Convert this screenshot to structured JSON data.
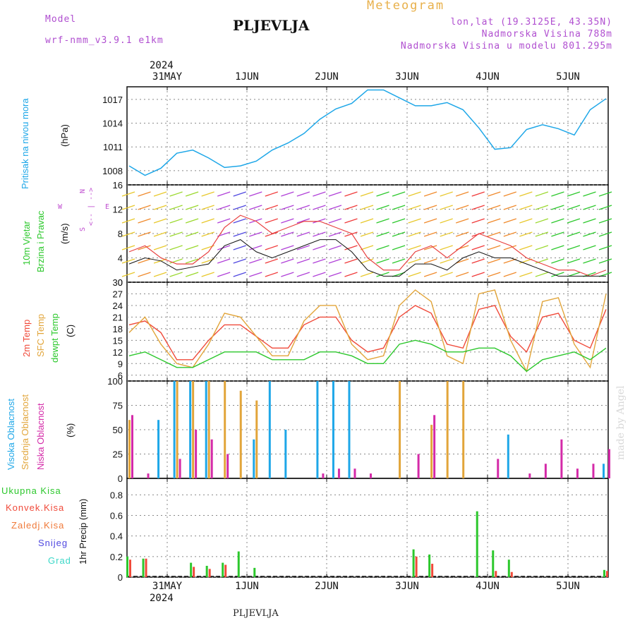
{
  "header": {
    "model_label": "Model",
    "model_value": "wrf-nmm_v3.9.1 e1km",
    "station": "PLJEVLJA",
    "title": "Meteogram",
    "coords": "lon,lat (19.3125E, 43.35N)",
    "altitude": "Nadmorska Visina 788m",
    "model_altitude": "Nadmorska Visina u modelu 801.295m"
  },
  "footer": {
    "station": "PLJEVLJA",
    "credit": "made by Angel"
  },
  "days": [
    "31MAY",
    "1JUN",
    "2JUN",
    "3JUN",
    "4JUN",
    "5JUN"
  ],
  "year": "2024",
  "wind_legend": {
    "north": "N",
    "south": "S",
    "west": "W",
    "east": "E"
  },
  "colors": {
    "pressure": "#1ea7e8",
    "t2m": "#f04a3a",
    "sfc": "#e2a53a",
    "dew": "#2cc82c",
    "high": "#1ea7e8",
    "mid": "#e2a53a",
    "low": "#d42aa8",
    "total": "#2cc82c",
    "conv": "#f04a3a",
    "snow": "#5048e0",
    "grad": "#3cd8c8"
  },
  "panels": {
    "pressure": {
      "label1": "Pritisak na nivou mora",
      "unit": "(hPa)"
    },
    "wind": {
      "label1": "10m Vjetar",
      "label2": "Brzina i Pravac",
      "unit": "(m/s)"
    },
    "temp": {
      "label1": "2m Temp",
      "label2": "SFC Temp",
      "label3": "dewpt Temp",
      "unit": "(C)"
    },
    "cloud": {
      "label1": "Visoka Oblacnost",
      "label2": "Srednja Oblacnost",
      "label3": "Niska Oblacnost",
      "unit": "(%)"
    },
    "precip": {
      "labels": [
        "Ukupna Kisa",
        "Konvek.Kisa",
        "Zaledj.Kisa",
        "Snijeg",
        "Grad"
      ],
      "unit": "1hr Precip (mm)"
    }
  },
  "chart_data": [
    {
      "type": "line",
      "title": "Pritisak na nivou mora",
      "ylabel": "(hPa)",
      "ylim": [
        1006.2,
        1018.6
      ],
      "yticks": [
        1008,
        1011,
        1014,
        1017
      ],
      "x": [
        0,
        1,
        2,
        3,
        4,
        5,
        6,
        7,
        8,
        9,
        10,
        11,
        12,
        13,
        14,
        15,
        16,
        17,
        18,
        19,
        20,
        21,
        22,
        23,
        24,
        25,
        26,
        27,
        28,
        29,
        30
      ],
      "series": [
        {
          "values": [
            1008.6,
            1007.4,
            1008.3,
            1010.2,
            1010.6,
            1009.6,
            1008.4,
            1008.6,
            1009.2,
            1010.6,
            1011.5,
            1012.7,
            1014.5,
            1015.8,
            1016.5,
            1018.2,
            1018.2,
            1017.2,
            1016.2,
            1016.2,
            1016.6,
            1015.7,
            1013.4,
            1010.7,
            1010.9,
            1013.2,
            1013.8,
            1013.3,
            1012.5,
            1015.7,
            1017.1
          ]
        }
      ]
    },
    {
      "type": "line",
      "title": "10m Vjetar Brzina i Pravac",
      "ylabel": "(m/s)",
      "ylim": [
        0,
        16
      ],
      "yticks": [
        0,
        4,
        8,
        12,
        16
      ],
      "x": [
        0,
        1,
        2,
        3,
        4,
        5,
        6,
        7,
        8,
        9,
        10,
        11,
        12,
        13,
        14,
        15,
        16,
        17,
        18,
        19,
        20,
        21,
        22,
        23,
        24,
        25,
        26,
        27,
        28,
        29,
        30
      ],
      "series": [
        {
          "values": [
            3,
            4,
            3.5,
            2,
            2.5,
            3,
            6,
            7,
            5,
            4,
            5,
            6,
            7,
            7,
            5,
            2,
            1,
            1,
            3,
            3,
            2,
            4,
            5,
            4,
            4,
            3,
            2,
            1,
            1,
            1,
            1
          ]
        },
        {
          "values": [
            5,
            6,
            4,
            3,
            3,
            5,
            9,
            11,
            10,
            8,
            9,
            10,
            10,
            9,
            8,
            4,
            2,
            2,
            5,
            6,
            4,
            6,
            8,
            7,
            6,
            4,
            3,
            2,
            2,
            1,
            2
          ]
        }
      ]
    },
    {
      "type": "line",
      "title": "2m Temp / SFC Temp / dewpt Temp",
      "ylabel": "(C)",
      "ylim": [
        4.5,
        30
      ],
      "yticks": [
        6,
        9,
        12,
        15,
        18,
        21,
        24,
        27,
        30
      ],
      "x": [
        0,
        1,
        2,
        3,
        4,
        5,
        6,
        7,
        8,
        9,
        10,
        11,
        12,
        13,
        14,
        15,
        16,
        17,
        18,
        19,
        20,
        21,
        22,
        23,
        24,
        25,
        26,
        27,
        28,
        29,
        30
      ],
      "series": [
        {
          "name": "2m Temp",
          "values": [
            19,
            20,
            17,
            10,
            10,
            15,
            19,
            19,
            16,
            13,
            13,
            19,
            21,
            21,
            15,
            12,
            13,
            21,
            24,
            22,
            14,
            13,
            23,
            24,
            16,
            12,
            21,
            22,
            15,
            13,
            23
          ]
        },
        {
          "name": "SFC Temp",
          "values": [
            17,
            21,
            14,
            9,
            8,
            14,
            22,
            21,
            16,
            11,
            11,
            20,
            24,
            24,
            14,
            10,
            11,
            24,
            28,
            25,
            11,
            9,
            27,
            28,
            15,
            7,
            25,
            26,
            14,
            8,
            27
          ]
        },
        {
          "name": "dewpt Temp",
          "values": [
            11,
            12,
            10,
            8,
            8,
            10,
            12,
            12,
            12,
            10,
            10,
            10,
            12,
            12,
            11,
            9,
            9,
            14,
            15,
            14,
            12,
            12,
            13,
            13,
            11,
            7,
            10,
            11,
            12,
            10,
            13
          ]
        }
      ]
    },
    {
      "type": "bar",
      "title": "Visoka / Srednja / Niska Oblacnost",
      "ylabel": "(%)",
      "ylim": [
        0,
        100
      ],
      "yticks": [
        0,
        25,
        50,
        75,
        100
      ],
      "x": [
        0,
        1,
        2,
        3,
        4,
        5,
        6,
        7,
        8,
        9,
        10,
        11,
        12,
        13,
        14,
        15,
        16,
        17,
        18,
        19,
        20,
        21,
        22,
        23,
        24,
        25,
        26,
        27,
        28,
        29,
        30
      ],
      "series": [
        {
          "name": "Visoka Oblacnost",
          "values": [
            0,
            0,
            60,
            100,
            100,
            100,
            0,
            0,
            40,
            100,
            50,
            0,
            100,
            100,
            100,
            0,
            0,
            0,
            0,
            0,
            0,
            0,
            0,
            0,
            45,
            0,
            0,
            0,
            0,
            0,
            15
          ]
        },
        {
          "name": "Srednja Oblacnost",
          "values": [
            60,
            0,
            0,
            100,
            100,
            100,
            100,
            90,
            80,
            0,
            0,
            0,
            0,
            0,
            0,
            0,
            0,
            100,
            0,
            55,
            100,
            100,
            0,
            0,
            0,
            0,
            0,
            0,
            0,
            0,
            0
          ]
        },
        {
          "name": "Niska Oblacnost",
          "values": [
            65,
            5,
            0,
            20,
            50,
            40,
            25,
            0,
            0,
            0,
            0,
            0,
            5,
            10,
            10,
            5,
            0,
            0,
            25,
            65,
            0,
            0,
            0,
            20,
            0,
            5,
            15,
            40,
            10,
            15,
            30
          ]
        }
      ]
    },
    {
      "type": "bar",
      "title": "1hr Precip (mm)",
      "ylabel": "1hr Precip (mm)",
      "ylim": [
        0,
        0.96
      ],
      "yticks": [
        0,
        0.2,
        0.4,
        0.6,
        0.8
      ],
      "x": [
        0,
        1,
        2,
        3,
        4,
        5,
        6,
        7,
        8,
        9,
        10,
        11,
        12,
        13,
        14,
        15,
        16,
        17,
        18,
        19,
        20,
        21,
        22,
        23,
        24,
        25,
        26,
        27,
        28,
        29,
        30
      ],
      "series": [
        {
          "name": "Ukupna Kisa",
          "values": [
            0.2,
            0.18,
            0,
            0,
            0.14,
            0.11,
            0.14,
            0.25,
            0.09,
            0,
            0,
            0,
            0,
            0,
            0,
            0,
            0,
            0,
            0.27,
            0.22,
            0,
            0,
            0.64,
            0.26,
            0.17,
            0,
            0,
            0,
            0,
            0,
            0.07
          ]
        },
        {
          "name": "Konvek.Kisa",
          "values": [
            0.17,
            0.18,
            0,
            0,
            0.1,
            0.08,
            0.12,
            0,
            0,
            0,
            0,
            0,
            0,
            0,
            0,
            0,
            0,
            0,
            0.2,
            0.13,
            0,
            0,
            0,
            0.06,
            0.05,
            0,
            0,
            0,
            0,
            0,
            0.06
          ]
        }
      ]
    }
  ]
}
